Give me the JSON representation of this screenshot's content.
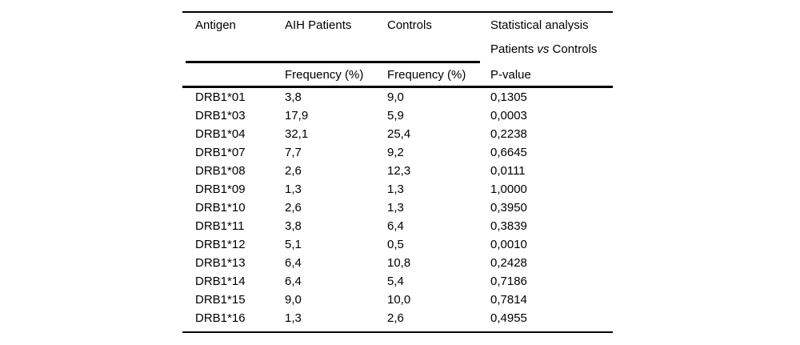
{
  "page": {
    "background_color": "#ffffff",
    "text_color": "#000000",
    "rule_color": "#000000"
  },
  "table": {
    "header": {
      "antigen": "Antigen",
      "aih_patients": "AIH Patients",
      "controls": "Controls",
      "statistical_analysis": "Statistical analysis",
      "vs_prefix": "Patients ",
      "vs_word": "vs",
      "vs_suffix": " Controls",
      "sub_aih": "Frequency (%)",
      "sub_controls": "Frequency (%)",
      "sub_p": "P-value"
    },
    "rows": [
      {
        "antigen": "DRB1*01",
        "aih": "3,8",
        "controls": "9,0",
        "p": "0,1305"
      },
      {
        "antigen": "DRB1*03",
        "aih": "17,9",
        "controls": "5,9",
        "p": "0,0003"
      },
      {
        "antigen": "DRB1*04",
        "aih": "32,1",
        "controls": "25,4",
        "p": "0,2238"
      },
      {
        "antigen": "DRB1*07",
        "aih": "7,7",
        "controls": "9,2",
        "p": "0,6645"
      },
      {
        "antigen": "DRB1*08",
        "aih": "2,6",
        "controls": "12,3",
        "p": "0,0111"
      },
      {
        "antigen": "DRB1*09",
        "aih": "1,3",
        "controls": "1,3",
        "p": "1,0000"
      },
      {
        "antigen": "DRB1*10",
        "aih": "2,6",
        "controls": "1,3",
        "p": "0,3950"
      },
      {
        "antigen": "DRB1*11",
        "aih": "3,8",
        "controls": "6,4",
        "p": "0,3839"
      },
      {
        "antigen": "DRB1*12",
        "aih": "5,1",
        "controls": "0,5",
        "p": "0,0010"
      },
      {
        "antigen": "DRB1*13",
        "aih": "6,4",
        "controls": "10,8",
        "p": "0,2428"
      },
      {
        "antigen": "DRB1*14",
        "aih": "6,4",
        "controls": "5,4",
        "p": "0,7186"
      },
      {
        "antigen": "DRB1*15",
        "aih": "9,0",
        "controls": "10,0",
        "p": "0,7814"
      },
      {
        "antigen": "DRB1*16",
        "aih": "1,3",
        "controls": "2,6",
        "p": "0,4955"
      }
    ]
  }
}
